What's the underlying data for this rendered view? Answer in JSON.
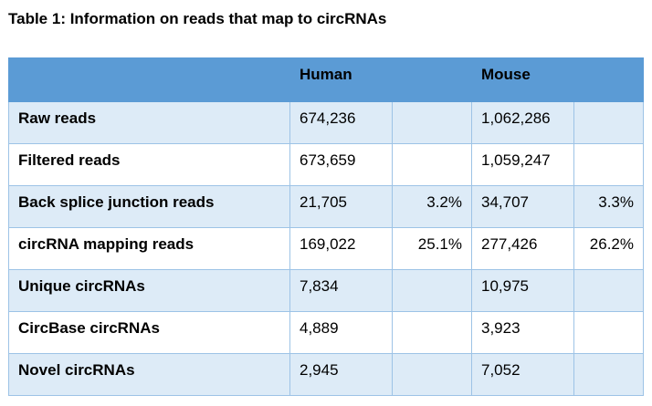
{
  "title": "Table 1: Information on reads that map to circRNAs",
  "table": {
    "headers": [
      "",
      "Human",
      "",
      "Mouse",
      ""
    ],
    "rows": [
      {
        "label": "Raw reads",
        "human": "674,236",
        "human_pct": "",
        "mouse": "1,062,286",
        "mouse_pct": ""
      },
      {
        "label": "Filtered reads",
        "human": "673,659",
        "human_pct": "",
        "mouse": "1,059,247",
        "mouse_pct": ""
      },
      {
        "label": "Back splice junction reads",
        "human": "21,705",
        "human_pct": "3.2%",
        "mouse": "34,707",
        "mouse_pct": "3.3%"
      },
      {
        "label": "circRNA mapping reads",
        "human": "169,022",
        "human_pct": "25.1%",
        "mouse": "277,426",
        "mouse_pct": "26.2%"
      },
      {
        "label": "Unique circRNAs",
        "human": "7,834",
        "human_pct": "",
        "mouse": "10,975",
        "mouse_pct": ""
      },
      {
        "label": "CircBase circRNAs",
        "human": "4,889",
        "human_pct": "",
        "mouse": "3,923",
        "mouse_pct": ""
      },
      {
        "label": "Novel circRNAs",
        "human": "2,945",
        "human_pct": "",
        "mouse": "7,052",
        "mouse_pct": ""
      }
    ]
  },
  "colors": {
    "header_bg": "#5b9bd5",
    "band_bg": "#ddebf7",
    "border": "#9dc3e6"
  }
}
